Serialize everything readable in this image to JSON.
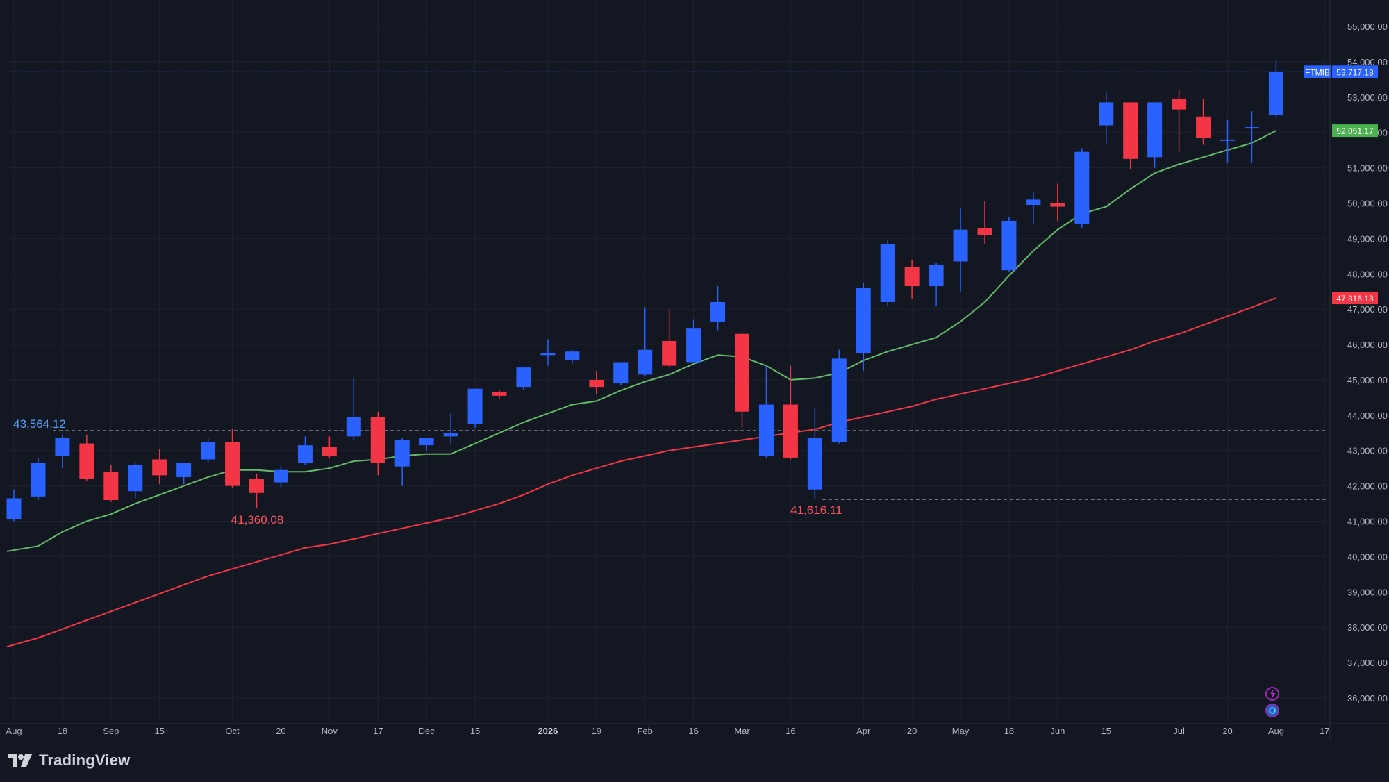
{
  "chart_data": {
    "type": "candlestick",
    "symbol": "FTMIB",
    "last_price": "53,717.18",
    "ma_fast_value": "52,051.17",
    "ma_slow_value": "47,316.13",
    "ylim": [
      35500,
      55500
    ],
    "ytick_values": [
      36000,
      37000,
      38000,
      39000,
      40000,
      41000,
      42000,
      43000,
      44000,
      45000,
      46000,
      47000,
      48000,
      49000,
      50000,
      51000,
      52000,
      53000,
      54000,
      55000
    ],
    "ytick_labels": [
      "36,000.00",
      "37,000.00",
      "38,000.00",
      "39,000.00",
      "40,000.00",
      "41,000.00",
      "42,000.00",
      "43,000.00",
      "44,000.00",
      "45,000.00",
      "46,000.00",
      "47,000.00",
      "48,000.00",
      "49,000.00",
      "50,000.00",
      "51,000.00",
      "52,000.00",
      "53,000.00",
      "54,000.00",
      "55,000.00"
    ],
    "xtick_labels": [
      {
        "label": "Aug",
        "idx": 0
      },
      {
        "label": "18",
        "idx": 2
      },
      {
        "label": "Sep",
        "idx": 4
      },
      {
        "label": "15",
        "idx": 6
      },
      {
        "label": "Oct",
        "idx": 9
      },
      {
        "label": "20",
        "idx": 11
      },
      {
        "label": "Nov",
        "idx": 13
      },
      {
        "label": "17",
        "idx": 15
      },
      {
        "label": "Dec",
        "idx": 17
      },
      {
        "label": "15",
        "idx": 19
      },
      {
        "label": "2026",
        "idx": 22,
        "bold": true
      },
      {
        "label": "19",
        "idx": 24
      },
      {
        "label": "Feb",
        "idx": 26
      },
      {
        "label": "16",
        "idx": 28
      },
      {
        "label": "Mar",
        "idx": 30
      },
      {
        "label": "16",
        "idx": 32
      },
      {
        "label": "Apr",
        "idx": 35
      },
      {
        "label": "20",
        "idx": 37
      },
      {
        "label": "May",
        "idx": 39
      },
      {
        "label": "18",
        "idx": 41
      },
      {
        "label": "Jun",
        "idx": 43
      },
      {
        "label": "15",
        "idx": 45
      },
      {
        "label": "Jul",
        "idx": 48
      },
      {
        "label": "20",
        "idx": 50
      },
      {
        "label": "Aug",
        "idx": 52
      },
      {
        "label": "17",
        "idx": 54
      }
    ],
    "candles": [
      {
        "o": 41050,
        "h": 41900,
        "l": 41000,
        "c": 41650
      },
      {
        "o": 41700,
        "h": 42800,
        "l": 41600,
        "c": 42650
      },
      {
        "o": 42850,
        "h": 43450,
        "l": 42500,
        "c": 43350
      },
      {
        "o": 43200,
        "h": 43450,
        "l": 42150,
        "c": 42200
      },
      {
        "o": 42400,
        "h": 42600,
        "l": 41550,
        "c": 41600
      },
      {
        "o": 41850,
        "h": 42650,
        "l": 41650,
        "c": 42600
      },
      {
        "o": 42750,
        "h": 43050,
        "l": 42050,
        "c": 42300
      },
      {
        "o": 42250,
        "h": 42650,
        "l": 42050,
        "c": 42650
      },
      {
        "o": 42750,
        "h": 43350,
        "l": 42650,
        "c": 43250
      },
      {
        "o": 43250,
        "h": 43600,
        "l": 41950,
        "c": 42000
      },
      {
        "o": 42200,
        "h": 42350,
        "l": 41360,
        "c": 41800
      },
      {
        "o": 42100,
        "h": 42550,
        "l": 41950,
        "c": 42450
      },
      {
        "o": 42650,
        "h": 43400,
        "l": 42600,
        "c": 43150
      },
      {
        "o": 43100,
        "h": 43400,
        "l": 42800,
        "c": 42850
      },
      {
        "o": 43400,
        "h": 45050,
        "l": 43300,
        "c": 43950
      },
      {
        "o": 43950,
        "h": 44100,
        "l": 42300,
        "c": 42650
      },
      {
        "o": 42550,
        "h": 43350,
        "l": 42000,
        "c": 43300
      },
      {
        "o": 43150,
        "h": 43350,
        "l": 43000,
        "c": 43350
      },
      {
        "o": 43400,
        "h": 44050,
        "l": 43200,
        "c": 43500
      },
      {
        "o": 43750,
        "h": 44750,
        "l": 43650,
        "c": 44750
      },
      {
        "o": 44650,
        "h": 44700,
        "l": 44450,
        "c": 44550
      },
      {
        "o": 44800,
        "h": 45350,
        "l": 44700,
        "c": 45350
      },
      {
        "o": 45700,
        "h": 46150,
        "l": 45400,
        "c": 45750
      },
      {
        "o": 45550,
        "h": 45850,
        "l": 45450,
        "c": 45800
      },
      {
        "o": 45000,
        "h": 45250,
        "l": 44600,
        "c": 44800
      },
      {
        "o": 44900,
        "h": 45500,
        "l": 44850,
        "c": 45500
      },
      {
        "o": 45150,
        "h": 47050,
        "l": 45100,
        "c": 45850
      },
      {
        "o": 46100,
        "h": 47000,
        "l": 45350,
        "c": 45400
      },
      {
        "o": 45500,
        "h": 46700,
        "l": 45500,
        "c": 46450
      },
      {
        "o": 46650,
        "h": 47650,
        "l": 46400,
        "c": 47200
      },
      {
        "o": 46300,
        "h": 46350,
        "l": 43650,
        "c": 44100
      },
      {
        "o": 42850,
        "h": 45400,
        "l": 42800,
        "c": 44300
      },
      {
        "o": 44300,
        "h": 45400,
        "l": 42750,
        "c": 42800
      },
      {
        "o": 41900,
        "h": 44200,
        "l": 41616,
        "c": 43350
      },
      {
        "o": 43250,
        "h": 45850,
        "l": 43200,
        "c": 45600
      },
      {
        "o": 45750,
        "h": 47750,
        "l": 45250,
        "c": 47600
      },
      {
        "o": 47200,
        "h": 48950,
        "l": 47100,
        "c": 48850
      },
      {
        "o": 48200,
        "h": 48400,
        "l": 47300,
        "c": 47650
      },
      {
        "o": 47650,
        "h": 48300,
        "l": 47100,
        "c": 48250
      },
      {
        "o": 48350,
        "h": 49850,
        "l": 47500,
        "c": 49250
      },
      {
        "o": 49300,
        "h": 50050,
        "l": 48850,
        "c": 49100
      },
      {
        "o": 48100,
        "h": 49600,
        "l": 48050,
        "c": 49500
      },
      {
        "o": 49950,
        "h": 50300,
        "l": 49400,
        "c": 50100
      },
      {
        "o": 50000,
        "h": 50550,
        "l": 49500,
        "c": 49900
      },
      {
        "o": 49400,
        "h": 51550,
        "l": 49300,
        "c": 51450
      },
      {
        "o": 52200,
        "h": 53150,
        "l": 51700,
        "c": 52850
      },
      {
        "o": 52850,
        "h": 52850,
        "l": 50950,
        "c": 51250
      },
      {
        "o": 51300,
        "h": 52850,
        "l": 51000,
        "c": 52850
      },
      {
        "o": 52950,
        "h": 53200,
        "l": 51450,
        "c": 52650
      },
      {
        "o": 52450,
        "h": 52950,
        "l": 51650,
        "c": 51850
      },
      {
        "o": 51800,
        "h": 52350,
        "l": 51150,
        "c": 51800
      },
      {
        "o": 52150,
        "h": 52600,
        "l": 51150,
        "c": 52150
      },
      {
        "o": 52500,
        "h": 54050,
        "l": 52400,
        "c": 53717
      }
    ],
    "ma_fast": [
      40150,
      40300,
      40700,
      41000,
      41200,
      41500,
      41750,
      42000,
      42250,
      42450,
      42450,
      42400,
      42400,
      42500,
      42700,
      42750,
      42850,
      42900,
      42900,
      43200,
      43500,
      43800,
      44050,
      44300,
      44400,
      44700,
      44950,
      45150,
      45450,
      45700,
      45650,
      45400,
      45000,
      45050,
      45200,
      45550,
      45800,
      46000,
      46200,
      46650,
      47200,
      47950,
      48650,
      49250,
      49700,
      49900,
      50400,
      50850,
      51100,
      51300,
      51500,
      51700,
      52051
    ],
    "ma_slow": [
      37450,
      37700,
      37950,
      38200,
      38450,
      38700,
      38950,
      39200,
      39450,
      39650,
      39850,
      40050,
      40250,
      40350,
      40500,
      40650,
      40800,
      40950,
      41100,
      41300,
      41500,
      41750,
      42050,
      42300,
      42500,
      42700,
      42850,
      43000,
      43100,
      43200,
      43300,
      43400,
      43500,
      43600,
      43800,
      43950,
      44100,
      44250,
      44450,
      44600,
      44750,
      44900,
      45050,
      45250,
      45450,
      45650,
      45850,
      46100,
      46300,
      46550,
      46800,
      47050,
      47316
    ],
    "annotations": [
      {
        "text": "43,564.12",
        "value": 43564.12,
        "start_idx": 1
      },
      {
        "text": "41,360.08",
        "value": 41360.08,
        "idx": 10
      },
      {
        "text": "41,616.11",
        "value": 41616.11,
        "idx": 33
      }
    ],
    "colors": {
      "up": "#2962ff",
      "down": "#f23645",
      "ma_fast": "#66bb6a",
      "ma_slow": "#f23645",
      "grid": "#1e222d",
      "axis_text": "#b2b5be",
      "background": "#131722",
      "high_label": "#5b9cf6",
      "low_label": "#f7525f"
    }
  },
  "footer": {
    "brand_name": "TradingView"
  }
}
